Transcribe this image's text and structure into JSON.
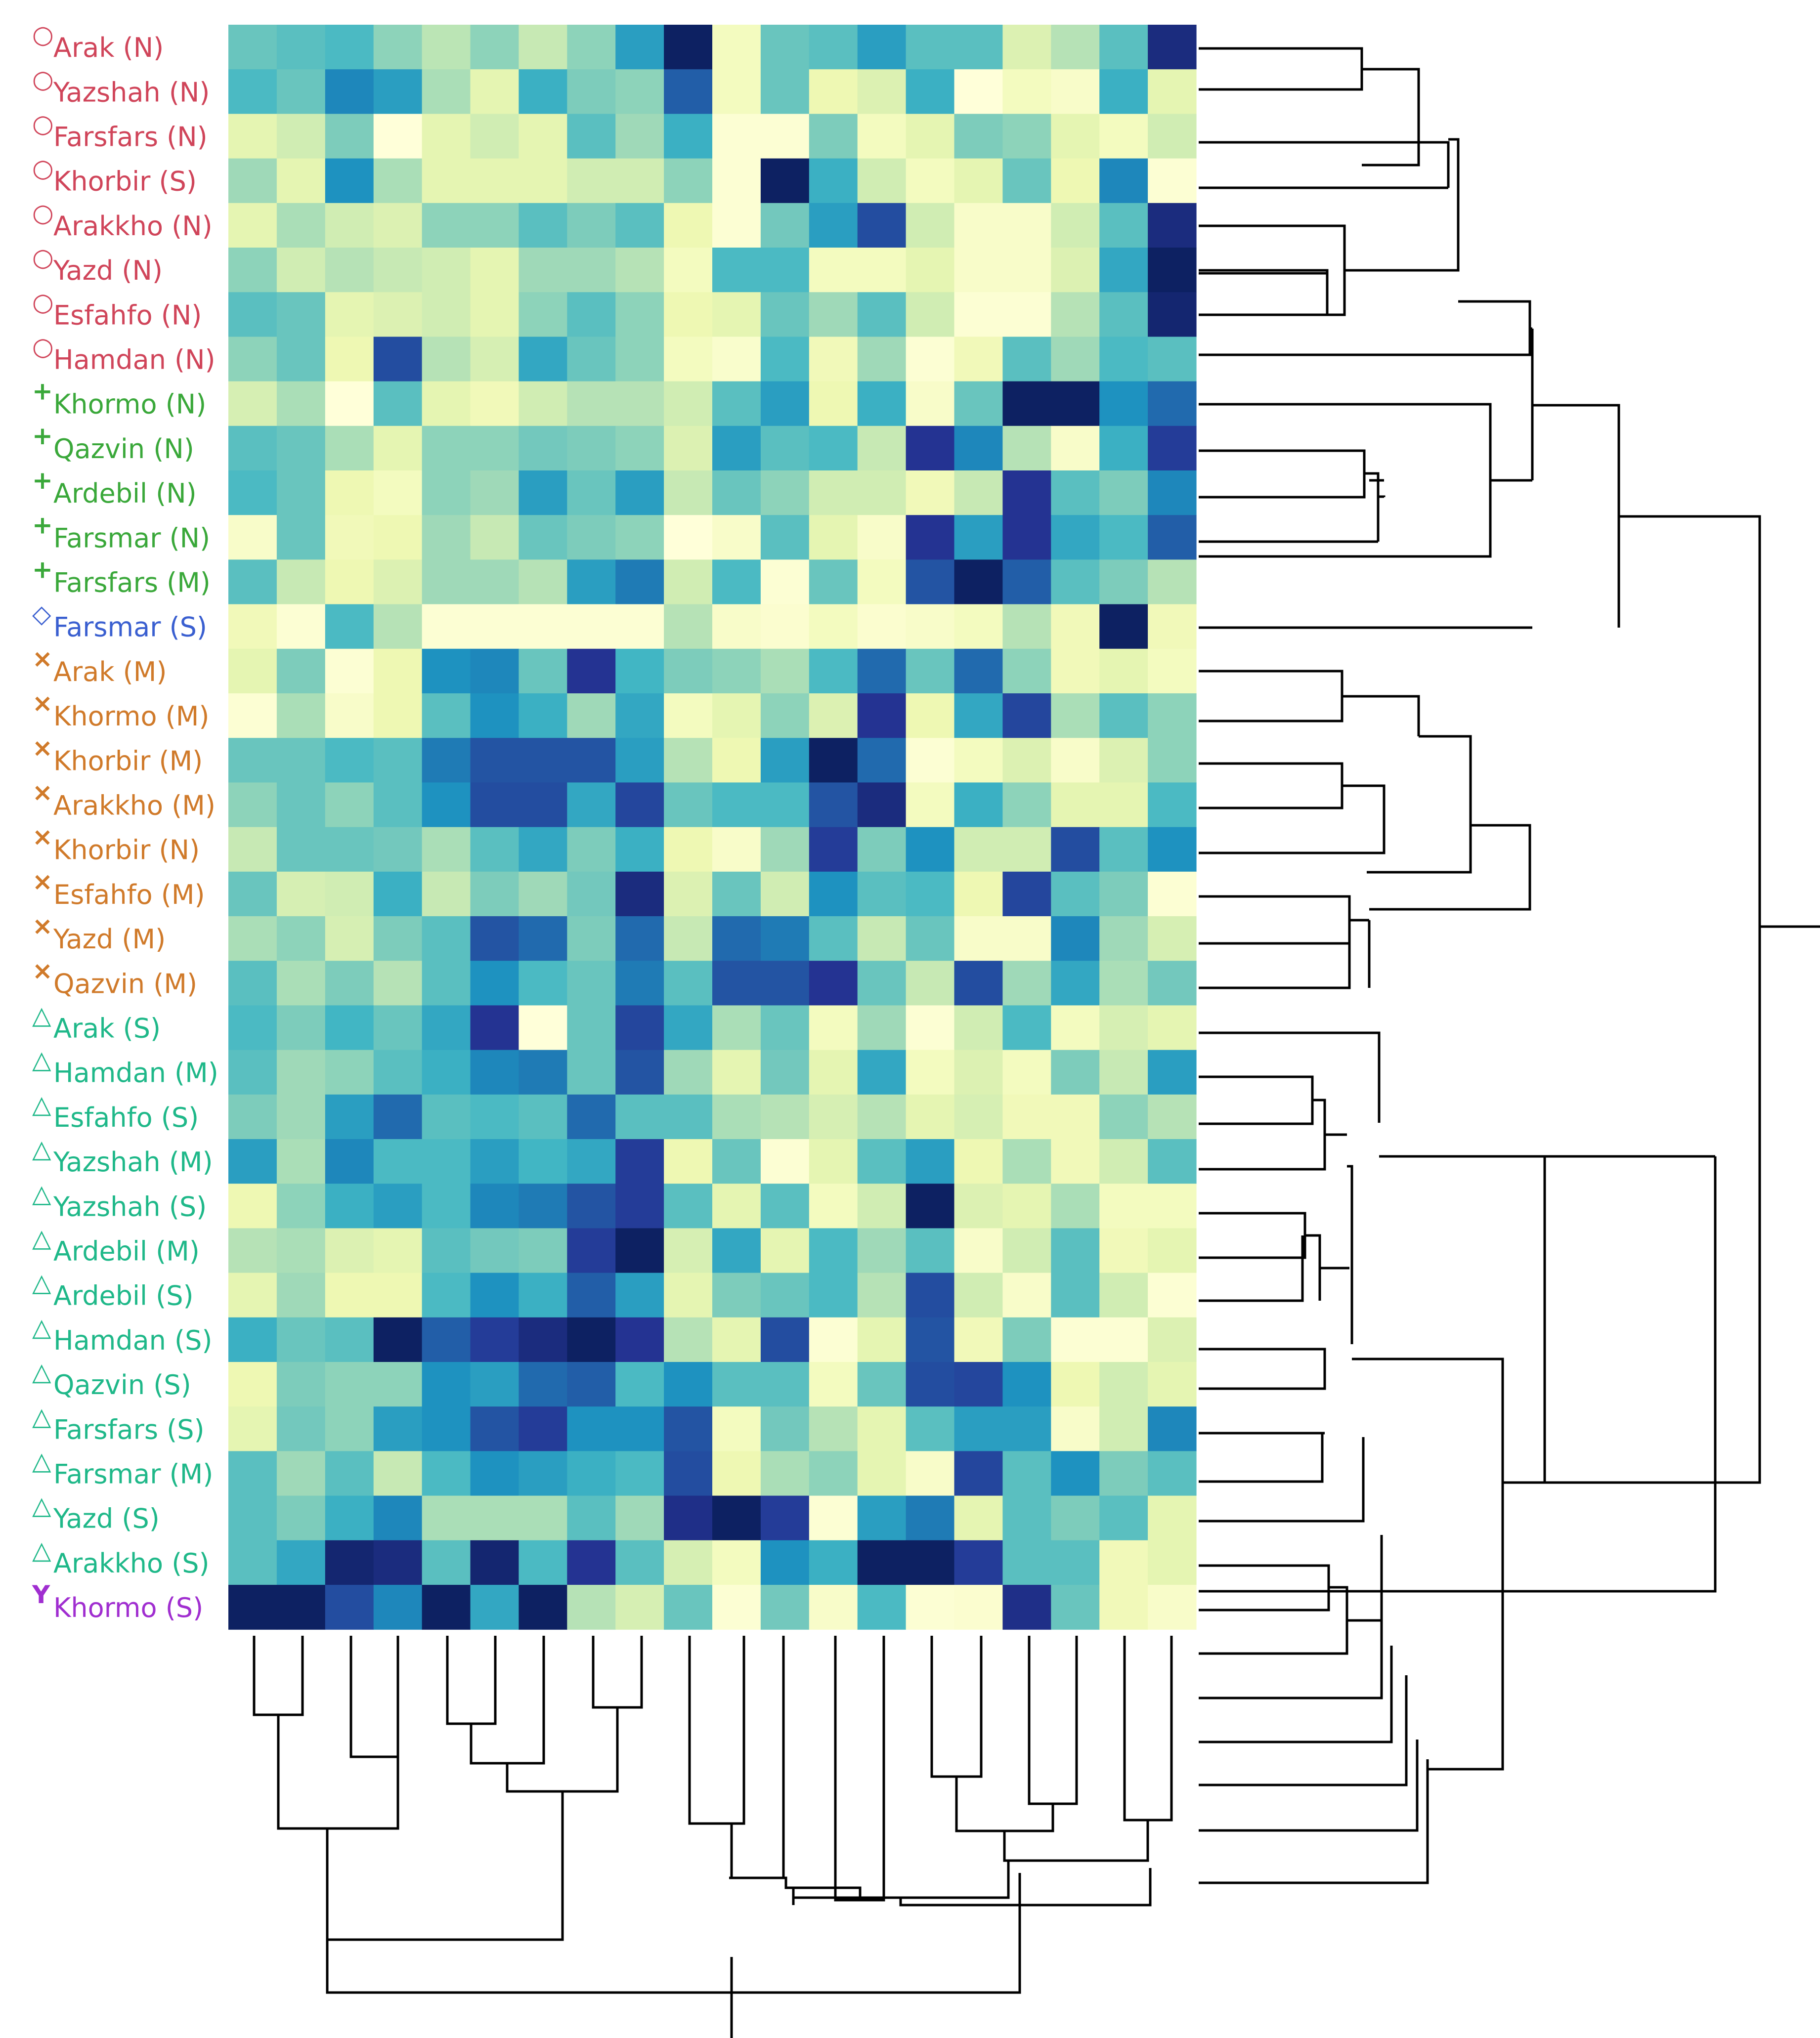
{
  "chart_data": {
    "type": "heatmap",
    "title": "",
    "xlabel": "",
    "ylabel": "",
    "colormap": "YlGnBu",
    "value_range": [
      0,
      1
    ],
    "column_count": 20,
    "groups": [
      {
        "name": "group-circle",
        "symbol": "○",
        "color": "#d0455a"
      },
      {
        "name": "group-plus",
        "symbol": "+",
        "color": "#3aa83a"
      },
      {
        "name": "group-diamond",
        "symbol": "◇",
        "color": "#3a5fd0"
      },
      {
        "name": "group-cross",
        "symbol": "×",
        "color": "#d07a2a"
      },
      {
        "name": "group-triangle",
        "symbol": "△",
        "color": "#1fb889"
      },
      {
        "name": "group-y",
        "symbol": "Y",
        "color": "#a02ed0"
      }
    ],
    "rows": [
      {
        "label": "Arak (N)",
        "group": 0,
        "values": [
          0.42,
          0.45,
          0.48,
          0.35,
          0.27,
          0.35,
          0.25,
          0.35,
          0.58,
          0.98,
          0.08,
          0.42,
          0.45,
          0.58,
          0.45,
          0.45,
          0.18,
          0.28,
          0.45,
          0.92
        ]
      },
      {
        "label": "Yazshah (N)",
        "group": 0,
        "values": [
          0.48,
          0.42,
          0.65,
          0.58,
          0.3,
          0.15,
          0.52,
          0.38,
          0.35,
          0.75,
          0.08,
          0.42,
          0.12,
          0.18,
          0.52,
          0.0,
          0.08,
          0.05,
          0.52,
          0.15
        ]
      },
      {
        "label": "Farsfars (N)",
        "group": 0,
        "values": [
          0.15,
          0.22,
          0.38,
          0.0,
          0.15,
          0.22,
          0.15,
          0.45,
          0.32,
          0.52,
          0.02,
          0.02,
          0.38,
          0.08,
          0.15,
          0.38,
          0.35,
          0.15,
          0.08,
          0.22
        ]
      },
      {
        "label": "Khorbir (S)",
        "group": 0,
        "values": [
          0.32,
          0.15,
          0.62,
          0.3,
          0.15,
          0.15,
          0.15,
          0.22,
          0.22,
          0.35,
          0.02,
          0.98,
          0.52,
          0.22,
          0.08,
          0.15,
          0.42,
          0.12,
          0.65,
          0.02
        ]
      },
      {
        "label": "Arakkho (N)",
        "group": 0,
        "values": [
          0.15,
          0.3,
          0.22,
          0.18,
          0.35,
          0.35,
          0.45,
          0.38,
          0.45,
          0.12,
          0.02,
          0.4,
          0.58,
          0.8,
          0.22,
          0.05,
          0.05,
          0.22,
          0.45,
          0.92
        ]
      },
      {
        "label": "Yazd (N)",
        "group": 0,
        "values": [
          0.35,
          0.22,
          0.28,
          0.25,
          0.22,
          0.15,
          0.32,
          0.32,
          0.28,
          0.08,
          0.48,
          0.48,
          0.08,
          0.08,
          0.15,
          0.05,
          0.05,
          0.18,
          0.55,
          0.98
        ]
      },
      {
        "label": "Esfahfo (N)",
        "group": 0,
        "values": [
          0.45,
          0.42,
          0.15,
          0.18,
          0.22,
          0.15,
          0.35,
          0.45,
          0.35,
          0.12,
          0.15,
          0.42,
          0.32,
          0.45,
          0.22,
          0.02,
          0.02,
          0.28,
          0.45,
          0.95
        ]
      },
      {
        "label": "Hamdan (N)",
        "group": 0,
        "values": [
          0.35,
          0.42,
          0.12,
          0.8,
          0.28,
          0.2,
          0.55,
          0.42,
          0.35,
          0.08,
          0.04,
          0.48,
          0.1,
          0.32,
          0.02,
          0.1,
          0.45,
          0.32,
          0.48,
          0.45
        ]
      },
      {
        "label": "Khormo (N)",
        "group": 1,
        "values": [
          0.2,
          0.3,
          0.0,
          0.45,
          0.15,
          0.1,
          0.22,
          0.28,
          0.28,
          0.22,
          0.45,
          0.58,
          0.12,
          0.52,
          0.05,
          0.42,
          0.98,
          0.98,
          0.62,
          0.72
        ]
      },
      {
        "label": "Qazvin (N)",
        "group": 1,
        "values": [
          0.45,
          0.42,
          0.3,
          0.15,
          0.35,
          0.35,
          0.4,
          0.38,
          0.35,
          0.18,
          0.58,
          0.45,
          0.48,
          0.25,
          0.88,
          0.65,
          0.28,
          0.05,
          0.52,
          0.85
        ]
      },
      {
        "label": "Ardebil (N)",
        "group": 1,
        "values": [
          0.48,
          0.42,
          0.12,
          0.08,
          0.35,
          0.32,
          0.58,
          0.42,
          0.58,
          0.25,
          0.42,
          0.35,
          0.22,
          0.22,
          0.1,
          0.25,
          0.88,
          0.45,
          0.38,
          0.65
        ]
      },
      {
        "label": "Farsmar (N)",
        "group": 1,
        "values": [
          0.05,
          0.42,
          0.1,
          0.12,
          0.32,
          0.25,
          0.42,
          0.38,
          0.35,
          0.0,
          0.05,
          0.45,
          0.15,
          0.05,
          0.88,
          0.58,
          0.88,
          0.55,
          0.48,
          0.75
        ]
      },
      {
        "label": "Farsfars (M)",
        "group": 1,
        "values": [
          0.45,
          0.25,
          0.12,
          0.18,
          0.32,
          0.32,
          0.28,
          0.58,
          0.68,
          0.22,
          0.48,
          0.02,
          0.42,
          0.08,
          0.78,
          0.98,
          0.75,
          0.45,
          0.38,
          0.28
        ]
      },
      {
        "label": "Farsmar (S)",
        "group": 2,
        "values": [
          0.1,
          0.02,
          0.48,
          0.28,
          0.02,
          0.02,
          0.02,
          0.02,
          0.02,
          0.28,
          0.05,
          0.03,
          0.08,
          0.03,
          0.05,
          0.08,
          0.28,
          0.1,
          0.98,
          0.1
        ]
      },
      {
        "label": "Arak (M)",
        "group": 3,
        "values": [
          0.15,
          0.38,
          0.02,
          0.12,
          0.62,
          0.65,
          0.42,
          0.88,
          0.5,
          0.38,
          0.35,
          0.3,
          0.48,
          0.72,
          0.42,
          0.72,
          0.35,
          0.1,
          0.15,
          0.08
        ]
      },
      {
        "label": "Khormo (M)",
        "group": 3,
        "values": [
          0.02,
          0.3,
          0.05,
          0.12,
          0.45,
          0.62,
          0.52,
          0.32,
          0.55,
          0.08,
          0.15,
          0.35,
          0.18,
          0.88,
          0.12,
          0.55,
          0.82,
          0.3,
          0.45,
          0.35
        ]
      },
      {
        "label": "Khorbir (M)",
        "group": 3,
        "values": [
          0.42,
          0.42,
          0.48,
          0.45,
          0.68,
          0.78,
          0.78,
          0.78,
          0.58,
          0.28,
          0.12,
          0.58,
          0.98,
          0.72,
          0.02,
          0.08,
          0.18,
          0.05,
          0.18,
          0.35
        ]
      },
      {
        "label": "Arakkho (M)",
        "group": 3,
        "values": [
          0.35,
          0.42,
          0.35,
          0.45,
          0.62,
          0.8,
          0.8,
          0.55,
          0.82,
          0.42,
          0.48,
          0.48,
          0.78,
          0.92,
          0.08,
          0.52,
          0.35,
          0.15,
          0.15,
          0.48
        ]
      },
      {
        "label": "Khorbir (N)",
        "group": 3,
        "values": [
          0.25,
          0.42,
          0.42,
          0.4,
          0.3,
          0.45,
          0.55,
          0.38,
          0.52,
          0.12,
          0.05,
          0.32,
          0.85,
          0.38,
          0.62,
          0.22,
          0.22,
          0.8,
          0.45,
          0.62
        ]
      },
      {
        "label": "Esfahfo (M)",
        "group": 3,
        "values": [
          0.42,
          0.2,
          0.22,
          0.52,
          0.25,
          0.38,
          0.32,
          0.4,
          0.92,
          0.18,
          0.42,
          0.22,
          0.62,
          0.45,
          0.48,
          0.12,
          0.82,
          0.45,
          0.38,
          0.02
        ]
      },
      {
        "label": "Yazd  (M)",
        "group": 3,
        "values": [
          0.3,
          0.35,
          0.2,
          0.38,
          0.45,
          0.78,
          0.72,
          0.38,
          0.72,
          0.25,
          0.72,
          0.68,
          0.45,
          0.25,
          0.42,
          0.05,
          0.05,
          0.65,
          0.32,
          0.2
        ]
      },
      {
        "label": "Qazvin (M)",
        "group": 3,
        "values": [
          0.45,
          0.3,
          0.38,
          0.28,
          0.45,
          0.62,
          0.48,
          0.42,
          0.68,
          0.45,
          0.78,
          0.78,
          0.88,
          0.42,
          0.25,
          0.8,
          0.32,
          0.55,
          0.3,
          0.4
        ]
      },
      {
        "label": "Arak (S)",
        "group": 4,
        "values": [
          0.48,
          0.38,
          0.5,
          0.42,
          0.55,
          0.88,
          0.0,
          0.42,
          0.82,
          0.55,
          0.3,
          0.42,
          0.08,
          0.32,
          0.02,
          0.22,
          0.48,
          0.08,
          0.2,
          0.15
        ]
      },
      {
        "label": "Hamdan (M)",
        "group": 4,
        "values": [
          0.45,
          0.32,
          0.35,
          0.45,
          0.52,
          0.65,
          0.68,
          0.42,
          0.78,
          0.32,
          0.15,
          0.4,
          0.15,
          0.55,
          0.08,
          0.18,
          0.08,
          0.38,
          0.25,
          0.58
        ]
      },
      {
        "label": "Esfahfo (S)",
        "group": 4,
        "values": [
          0.38,
          0.32,
          0.58,
          0.72,
          0.45,
          0.48,
          0.45,
          0.72,
          0.45,
          0.45,
          0.3,
          0.28,
          0.2,
          0.28,
          0.15,
          0.2,
          0.1,
          0.1,
          0.35,
          0.28
        ]
      },
      {
        "label": "Yazshah (M)",
        "group": 4,
        "values": [
          0.58,
          0.3,
          0.65,
          0.48,
          0.48,
          0.58,
          0.5,
          0.55,
          0.85,
          0.12,
          0.42,
          0.02,
          0.15,
          0.45,
          0.58,
          0.12,
          0.3,
          0.1,
          0.22,
          0.45
        ]
      },
      {
        "label": "Yazshah (S)",
        "group": 4,
        "values": [
          0.12,
          0.35,
          0.52,
          0.58,
          0.48,
          0.65,
          0.68,
          0.78,
          0.85,
          0.45,
          0.15,
          0.45,
          0.08,
          0.22,
          0.98,
          0.18,
          0.15,
          0.3,
          0.08,
          0.08
        ]
      },
      {
        "label": "Ardebil (M)",
        "group": 4,
        "values": [
          0.28,
          0.3,
          0.18,
          0.15,
          0.45,
          0.4,
          0.38,
          0.85,
          0.98,
          0.2,
          0.55,
          0.15,
          0.48,
          0.32,
          0.45,
          0.05,
          0.22,
          0.45,
          0.1,
          0.15
        ]
      },
      {
        "label": "Ardebil (S)",
        "group": 4,
        "values": [
          0.15,
          0.32,
          0.12,
          0.12,
          0.48,
          0.62,
          0.52,
          0.75,
          0.58,
          0.15,
          0.38,
          0.42,
          0.48,
          0.28,
          0.8,
          0.22,
          0.05,
          0.45,
          0.22,
          0.02
        ]
      },
      {
        "label": "Hamdan (S)",
        "group": 4,
        "values": [
          0.52,
          0.42,
          0.45,
          0.98,
          0.75,
          0.85,
          0.92,
          0.98,
          0.88,
          0.28,
          0.15,
          0.8,
          0.02,
          0.15,
          0.78,
          0.1,
          0.38,
          0.02,
          0.02,
          0.18
        ]
      },
      {
        "label": "Qazvin (S)",
        "group": 4,
        "values": [
          0.12,
          0.38,
          0.35,
          0.35,
          0.62,
          0.58,
          0.72,
          0.75,
          0.48,
          0.62,
          0.45,
          0.45,
          0.08,
          0.42,
          0.8,
          0.82,
          0.62,
          0.12,
          0.22,
          0.15
        ]
      },
      {
        "label": "Farsfars (S)",
        "group": 4,
        "values": [
          0.15,
          0.4,
          0.35,
          0.58,
          0.62,
          0.78,
          0.85,
          0.62,
          0.62,
          0.78,
          0.08,
          0.4,
          0.28,
          0.15,
          0.45,
          0.58,
          0.58,
          0.05,
          0.22,
          0.65
        ]
      },
      {
        "label": "Farsmar (M)",
        "group": 4,
        "values": [
          0.45,
          0.32,
          0.45,
          0.25,
          0.48,
          0.62,
          0.58,
          0.52,
          0.48,
          0.8,
          0.12,
          0.3,
          0.35,
          0.15,
          0.05,
          0.82,
          0.45,
          0.62,
          0.38,
          0.45
        ]
      },
      {
        "label": "Yazd (S)",
        "group": 4,
        "values": [
          0.45,
          0.38,
          0.52,
          0.65,
          0.3,
          0.3,
          0.3,
          0.45,
          0.32,
          0.9,
          0.98,
          0.85,
          0.02,
          0.58,
          0.68,
          0.15,
          0.45,
          0.38,
          0.45,
          0.15
        ]
      },
      {
        "label": "Arakkho (S)",
        "group": 4,
        "values": [
          0.45,
          0.55,
          0.95,
          0.92,
          0.45,
          0.95,
          0.48,
          0.88,
          0.45,
          0.2,
          0.08,
          0.62,
          0.52,
          0.98,
          0.98,
          0.85,
          0.45,
          0.45,
          0.1,
          0.15
        ]
      },
      {
        "label": "Khormo (S)",
        "group": 5,
        "values": [
          0.98,
          0.98,
          0.8,
          0.65,
          0.98,
          0.55,
          0.98,
          0.28,
          0.2,
          0.42,
          0.02,
          0.4,
          0.05,
          0.48,
          0.02,
          0.03,
          0.9,
          0.42,
          0.1,
          0.05
        ]
      }
    ]
  }
}
